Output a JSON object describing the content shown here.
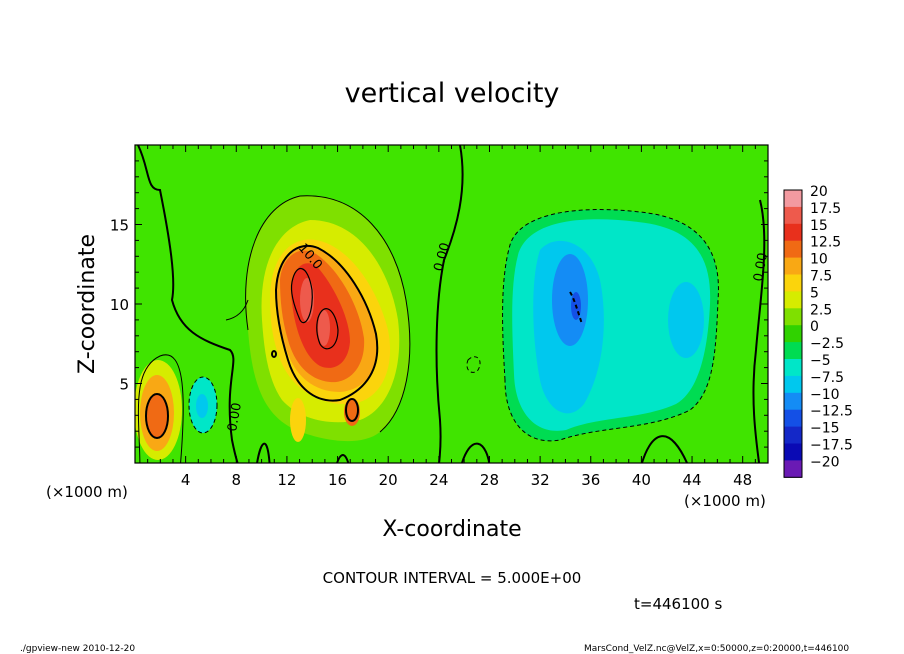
{
  "chart_data": {
    "type": "heatmap",
    "title": "vertical velocity",
    "xlabel": "X-coordinate",
    "ylabel": "Z-coordinate",
    "x_unit_left": "(×1000 m)",
    "x_unit_right": "(×1000 m)",
    "xlim": [
      0,
      50
    ],
    "ylim": [
      0,
      20
    ],
    "x_ticks": [
      4,
      8,
      12,
      16,
      20,
      24,
      28,
      32,
      36,
      40,
      44,
      48
    ],
    "y_ticks": [
      5,
      10,
      15
    ],
    "colorbar": {
      "levels": [
        20,
        17.5,
        15,
        12.5,
        10,
        7.5,
        5,
        2.5,
        0,
        -2.5,
        -5,
        -7.5,
        -10,
        -12.5,
        -15,
        -17.5,
        -20
      ],
      "labels": [
        "20",
        "17.5",
        "15",
        "12.5",
        "10",
        "7.5",
        "5",
        "2.5",
        "0",
        "−2.5",
        "−5",
        "−7.5",
        "−10",
        "−12.5",
        "−15",
        "−17.5",
        "−20"
      ],
      "colors": [
        "#f39aa0",
        "#ee5a4c",
        "#e8301c",
        "#f06a14",
        "#f9a814",
        "#fbd40c",
        "#d6ec00",
        "#7fe000",
        "#30d200",
        "#00dc52",
        "#00e6c8",
        "#00c8ee",
        "#148cf5",
        "#1450e6",
        "#1428c8",
        "#0a0ab4",
        "#6a1ab4"
      ]
    },
    "contour_labels": [
      "10.0",
      "0.00",
      "0.00",
      "0.00",
      "0.00"
    ],
    "features": [
      {
        "kind": "updraft",
        "x": 14,
        "z": 10,
        "peak": 15
      },
      {
        "kind": "updraft",
        "x": 1.5,
        "z": 3.5,
        "peak": 12.5
      },
      {
        "kind": "downdraft",
        "x": 34,
        "z": 10,
        "peak": -10
      },
      {
        "kind": "downdraft",
        "x": 44,
        "z": 10,
        "peak": -7.5
      }
    ],
    "contour_interval_text": "CONTOUR INTERVAL = 5.000E+00",
    "time_text": "t=446100 s"
  },
  "footer": {
    "left": "./gpview-new  2010-12-20",
    "right": "MarsCond_VelZ.nc@VelZ,x=0:50000,z=0:20000,t=446100"
  }
}
